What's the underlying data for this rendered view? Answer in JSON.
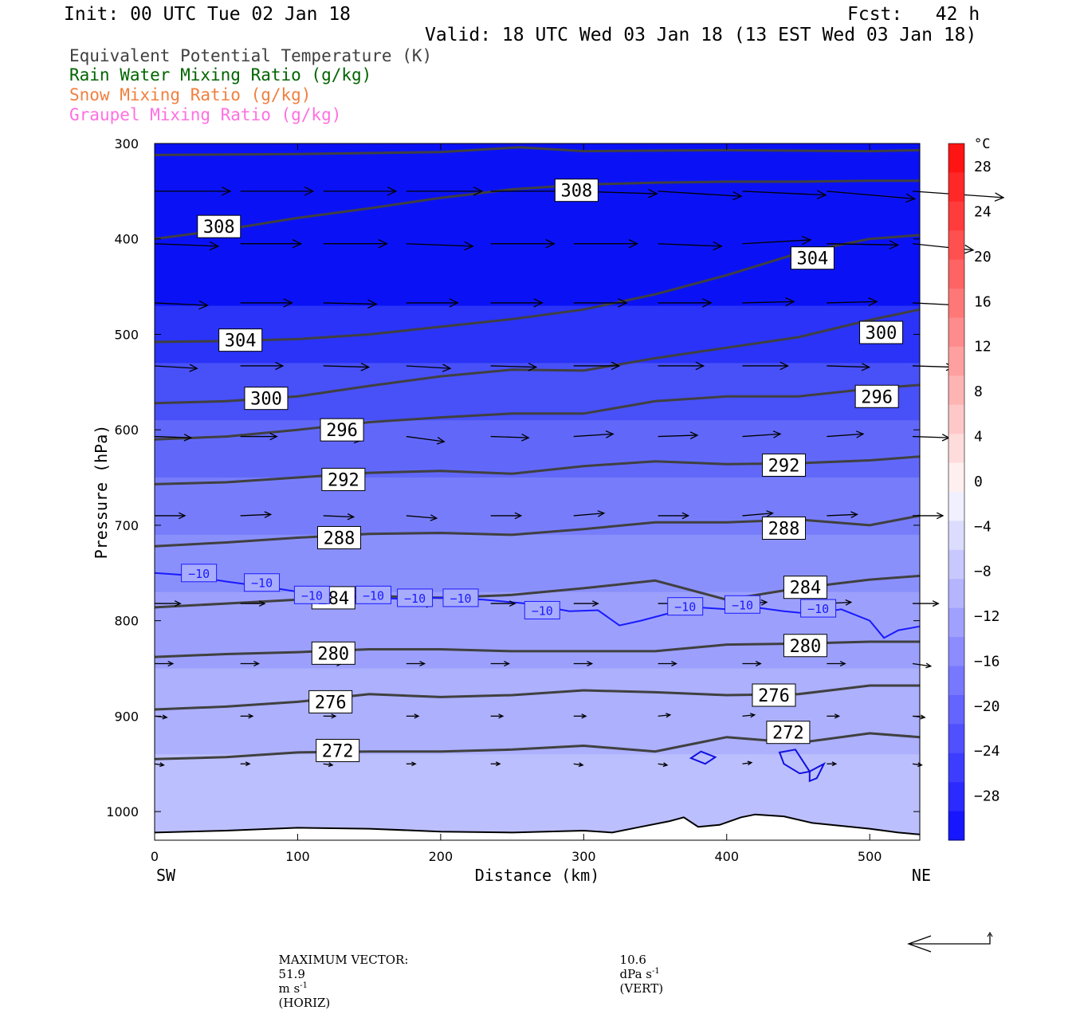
{
  "header": {
    "init": "Init: 00 UTC Tue 02 Jan 18",
    "fcst": "Fcst:   42 h",
    "valid": "Valid: 18 UTC Wed 03 Jan 18 (13 EST Wed 03 Jan 18)"
  },
  "legend": [
    {
      "label": "Equivalent Potential Temperature (K)",
      "color": "#404040"
    },
    {
      "label": "Rain Water Mixing Ratio (g/kg)",
      "color": "#006400"
    },
    {
      "label": "Snow Mixing Ratio (g/kg)",
      "color": "#f08040"
    },
    {
      "label": "Graupel Mixing Ratio (g/kg)",
      "color": "#ff70e0"
    }
  ],
  "footer": {
    "max_vector_label": "MAXIMUM VECTOR:",
    "horiz_value": "51.9",
    "horiz_unit": "m s",
    "horiz_exp": "-1",
    "horiz_tag": "(HORIZ)",
    "vert_value": "10.6",
    "vert_unit": "dPa s",
    "vert_exp": "-1",
    "vert_tag": "(VERT)"
  },
  "chart_data": {
    "type": "contour",
    "xlabel": "Distance (km)",
    "ylabel": "Pressure (hPa)",
    "x_left_label": "SW",
    "x_right_label": "NE",
    "xlim": [
      0,
      535
    ],
    "ylim": [
      300,
      1030
    ],
    "xticks": [
      0,
      100,
      200,
      300,
      400,
      500
    ],
    "yticks": [
      300,
      400,
      500,
      600,
      700,
      800,
      900,
      1000
    ],
    "colorbar": {
      "unit": "°C",
      "ticks": [
        28,
        24,
        20,
        16,
        12,
        8,
        4,
        0,
        -4,
        -8,
        -12,
        -16,
        -20,
        -24,
        -28
      ],
      "colors": [
        "#1616ff",
        "#2b2bff",
        "#3d3dff",
        "#5050ff",
        "#6464ff",
        "#7878ff",
        "#8c8cff",
        "#a0a0ff",
        "#b4b4ff",
        "#c8c8ff",
        "#dcdcff",
        "#f0f0ff",
        "#fff0f0",
        "#ffdcdc",
        "#ffc8c8",
        "#ffb4b4",
        "#ffa0a0",
        "#ff8c8c",
        "#ff7878",
        "#ff6464",
        "#ff5050",
        "#ff3c3c",
        "#ff2828",
        "#ff1414"
      ]
    },
    "temperature_bands": [
      {
        "p": [
          300,
          470
        ],
        "color": "#0a12f5"
      },
      {
        "p": [
          470,
          530
        ],
        "color": "#2a33f7"
      },
      {
        "p": [
          530,
          590
        ],
        "color": "#4850f8"
      },
      {
        "p": [
          590,
          650
        ],
        "color": "#6168f9"
      },
      {
        "p": [
          650,
          710
        ],
        "color": "#777dfa"
      },
      {
        "p": [
          710,
          770
        ],
        "color": "#8a90fb"
      },
      {
        "p": [
          770,
          850
        ],
        "color": "#9ca0fc"
      },
      {
        "p": [
          850,
          940
        ],
        "color": "#acb0fd"
      },
      {
        "p": [
          940,
          1030
        ],
        "color": "#bcbffd"
      }
    ],
    "theta_e_contours": [
      {
        "label": "308",
        "x": [
          0,
          50,
          100,
          150,
          200,
          250,
          300,
          350,
          400,
          450,
          500,
          535
        ],
        "p": [
          400,
          390,
          378,
          368,
          357,
          348,
          343,
          341,
          340,
          340,
          339,
          339
        ],
        "label_at": [
          45,
          387
        ]
      },
      {
        "label": "308",
        "x": [
          0,
          100,
          200,
          255,
          300,
          400,
          500,
          535
        ],
        "p": [
          312,
          311,
          309,
          304,
          308,
          307,
          308,
          307
        ],
        "label_at": [
          295,
          349
        ]
      },
      {
        "label": "304",
        "x": [
          0,
          50,
          100,
          150,
          200,
          250,
          300,
          350,
          400,
          450,
          500,
          535
        ],
        "p": [
          508,
          507,
          505,
          500,
          492,
          484,
          474,
          458,
          438,
          415,
          400,
          396
        ],
        "label_at": [
          460,
          420
        ]
      },
      {
        "label": "300",
        "x": [
          0,
          50,
          100,
          150,
          200,
          250,
          300,
          350,
          400,
          450,
          500,
          535
        ],
        "p": [
          572,
          570,
          565,
          554,
          544,
          537,
          538,
          525,
          514,
          503,
          485,
          474
        ],
        "label_at": [
          508,
          498
        ]
      },
      {
        "label": "296",
        "x": [
          0,
          50,
          100,
          150,
          200,
          250,
          300,
          350,
          400,
          450,
          500,
          535
        ],
        "p": [
          610,
          607,
          600,
          592,
          587,
          583,
          583,
          570,
          565,
          565,
          557,
          553
        ],
        "label_at": [
          505,
          565
        ]
      },
      {
        "label": "296",
        "x": [],
        "p": [],
        "label_at": [
          131,
          600
        ]
      },
      {
        "label": "300",
        "x": [],
        "p": [],
        "label_at": [
          78,
          567
        ]
      },
      {
        "label": "304",
        "x": [],
        "p": [],
        "label_at": [
          60,
          506
        ]
      },
      {
        "label": "292",
        "x": [
          0,
          50,
          100,
          150,
          200,
          250,
          300,
          350,
          400,
          450,
          500,
          535
        ],
        "p": [
          657,
          655,
          650,
          645,
          643,
          646,
          638,
          633,
          636,
          635,
          632,
          628
        ],
        "label_at": [
          132,
          652
        ]
      },
      {
        "label": "292",
        "x": [],
        "p": [],
        "label_at": [
          440,
          637
        ]
      },
      {
        "label": "288",
        "x": [
          0,
          50,
          100,
          150,
          200,
          250,
          300,
          350,
          400,
          450,
          500,
          535
        ],
        "p": [
          722,
          718,
          713,
          709,
          708,
          710,
          704,
          697,
          697,
          694,
          700,
          690
        ],
        "label_at": [
          129,
          713
        ]
      },
      {
        "label": "288",
        "x": [],
        "p": [],
        "label_at": [
          440,
          703
        ]
      },
      {
        "label": "284",
        "x": [
          0,
          50,
          100,
          150,
          200,
          250,
          300,
          350,
          400,
          450,
          500,
          535
        ],
        "p": [
          786,
          782,
          778,
          774,
          776,
          773,
          766,
          758,
          778,
          766,
          757,
          753
        ],
        "label_at": [
          125,
          776
        ]
      },
      {
        "label": "284",
        "x": [],
        "p": [],
        "label_at": [
          455,
          765
        ]
      },
      {
        "label": "280",
        "x": [
          0,
          50,
          100,
          150,
          200,
          250,
          300,
          350,
          400,
          450,
          500,
          535
        ],
        "p": [
          838,
          835,
          833,
          830,
          830,
          832,
          832,
          832,
          825,
          824,
          822,
          822
        ],
        "label_at": [
          125,
          834
        ]
      },
      {
        "label": "280",
        "x": [],
        "p": [],
        "label_at": [
          455,
          826
        ]
      },
      {
        "label": "276",
        "x": [
          0,
          50,
          100,
          150,
          200,
          250,
          300,
          350,
          400,
          450,
          500,
          535
        ],
        "p": [
          893,
          890,
          885,
          877,
          880,
          878,
          873,
          875,
          878,
          877,
          868,
          868
        ],
        "label_at": [
          123,
          885
        ]
      },
      {
        "label": "276",
        "x": [],
        "p": [],
        "label_at": [
          433,
          878
        ]
      },
      {
        "label": "272",
        "x": [
          0,
          50,
          100,
          150,
          200,
          250,
          300,
          350,
          400,
          450,
          500,
          535
        ],
        "p": [
          945,
          943,
          938,
          937,
          937,
          935,
          931,
          937,
          922,
          928,
          918,
          922
        ],
        "label_at": [
          128,
          936
        ]
      },
      {
        "label": "272",
        "x": [],
        "p": [],
        "label_at": [
          443,
          917
        ]
      }
    ],
    "isotherm_minus10": {
      "label": "−10",
      "x": [
        0,
        20,
        50,
        80,
        110,
        140,
        170,
        200,
        230,
        260,
        290,
        310,
        325,
        340,
        360,
        380,
        400,
        420,
        440,
        460,
        480,
        500,
        510,
        520,
        535
      ],
      "p": [
        750,
        752,
        759,
        765,
        772,
        775,
        777,
        776,
        778,
        782,
        790,
        789,
        805,
        800,
        792,
        786,
        788,
        786,
        790,
        793,
        788,
        800,
        818,
        810,
        806
      ],
      "labels_at": [
        [
          31,
          750
        ],
        [
          75,
          760
        ],
        [
          110,
          773
        ],
        [
          153,
          773
        ],
        [
          182,
          776
        ],
        [
          214,
          776
        ],
        [
          271,
          789
        ],
        [
          371,
          785
        ],
        [
          411,
          783
        ],
        [
          464,
          787
        ]
      ]
    },
    "surface_line": {
      "x": [
        0,
        50,
        100,
        150,
        200,
        250,
        300,
        320,
        340,
        360,
        370,
        380,
        395,
        410,
        420,
        440,
        460,
        480,
        500,
        520,
        535
      ],
      "p": [
        1022,
        1020,
        1017,
        1018,
        1021,
        1022,
        1020,
        1022,
        1016,
        1010,
        1006,
        1016,
        1014,
        1006,
        1003,
        1005,
        1012,
        1015,
        1018,
        1022,
        1024
      ]
    },
    "wind_vectors": [
      {
        "x": [
          0,
          60,
          118,
          176,
          235,
          293,
          352,
          411,
          470,
          530
        ],
        "p": 350,
        "u": [
          50,
          48,
          48,
          50,
          52,
          55,
          55,
          55,
          58,
          60
        ],
        "w": [
          0,
          0,
          0,
          0,
          0,
          -2,
          -4,
          -3,
          -6,
          -5
        ]
      },
      {
        "x": [
          0,
          60,
          118,
          176,
          235,
          293,
          352,
          411,
          470,
          530
        ],
        "p": 405,
        "u": [
          42,
          40,
          42,
          44,
          42,
          42,
          42,
          45,
          47,
          40
        ],
        "w": [
          -2,
          0,
          0,
          -2,
          0,
          0,
          -2,
          3,
          -1,
          -5
        ]
      },
      {
        "x": [
          0,
          60,
          118,
          176,
          235,
          293,
          352,
          411,
          470,
          530
        ],
        "p": 467,
        "u": [
          35,
          34,
          35,
          34,
          34,
          35,
          35,
          34,
          33,
          33
        ],
        "w": [
          -2,
          0,
          -1,
          0,
          0,
          0,
          0,
          1,
          1,
          -2
        ]
      },
      {
        "x": [
          0,
          60,
          118,
          176,
          235,
          293,
          352,
          411,
          470,
          530
        ],
        "p": 533,
        "u": [
          28,
          28,
          30,
          29,
          30,
          30,
          30,
          30,
          28,
          27
        ],
        "w": [
          -2,
          0,
          -1,
          -2,
          -1,
          0,
          0,
          0,
          -1,
          -1
        ]
      },
      {
        "x": [
          0,
          60,
          118,
          176,
          235,
          293,
          352,
          411,
          470,
          530
        ],
        "p": 607,
        "u": [
          24,
          24,
          25,
          25,
          25,
          26,
          26,
          25,
          24,
          24
        ],
        "w": [
          -1,
          0,
          -3,
          -4,
          -1,
          2,
          1,
          2,
          2,
          -1
        ]
      },
      {
        "x": [
          0,
          60,
          118,
          176,
          235,
          293,
          352,
          411,
          470,
          530
        ],
        "p": 690,
        "u": [
          20,
          20,
          20,
          20,
          20,
          20,
          20,
          20,
          20,
          20
        ],
        "w": [
          0,
          1,
          -1,
          -2,
          0,
          2,
          0,
          2,
          1,
          0
        ]
      },
      {
        "x": [
          0,
          60,
          118,
          176,
          235,
          293,
          352,
          411,
          470,
          530
        ],
        "p": 782,
        "u": [
          17,
          16,
          16,
          17,
          16,
          16,
          17,
          16,
          16,
          17
        ],
        "w": [
          0,
          0,
          -1,
          -1,
          0,
          0,
          0,
          1,
          1,
          0
        ]
      },
      {
        "x": [
          0,
          60,
          118,
          176,
          235,
          293,
          352,
          411,
          470,
          530
        ],
        "p": 845,
        "u": [
          12,
          12,
          12,
          12,
          12,
          12,
          12,
          12,
          12,
          12
        ],
        "w": [
          0,
          0,
          0,
          0,
          0,
          0,
          0,
          0,
          0,
          -2
        ]
      },
      {
        "x": [
          0,
          60,
          118,
          176,
          235,
          293,
          352,
          411,
          470,
          530
        ],
        "p": 900,
        "u": [
          8,
          8,
          8,
          8,
          8,
          8,
          8,
          8,
          8,
          8
        ],
        "w": [
          -1,
          0,
          0,
          0,
          0,
          0,
          1,
          1,
          0,
          -1
        ]
      },
      {
        "x": [
          0,
          60,
          118,
          176,
          235,
          293,
          352,
          411,
          470,
          530
        ],
        "p": 950,
        "u": [
          6,
          6,
          6,
          6,
          6,
          6,
          6,
          6,
          6,
          6
        ],
        "w": [
          -1,
          0,
          -1,
          0,
          0,
          -1,
          -1,
          1,
          0,
          -1
        ]
      }
    ],
    "blue_cells": [
      {
        "x": [
          375,
          382,
          392,
          385,
          375
        ],
        "p": [
          944,
          937,
          943,
          950,
          944
        ]
      },
      {
        "x": [
          437,
          448,
          458,
          451,
          440,
          437
        ],
        "p": [
          938,
          935,
          958,
          960,
          950,
          938
        ]
      },
      {
        "x": [
          458,
          468,
          463,
          458
        ],
        "p": [
          958,
          950,
          965,
          968
        ]
      }
    ]
  }
}
